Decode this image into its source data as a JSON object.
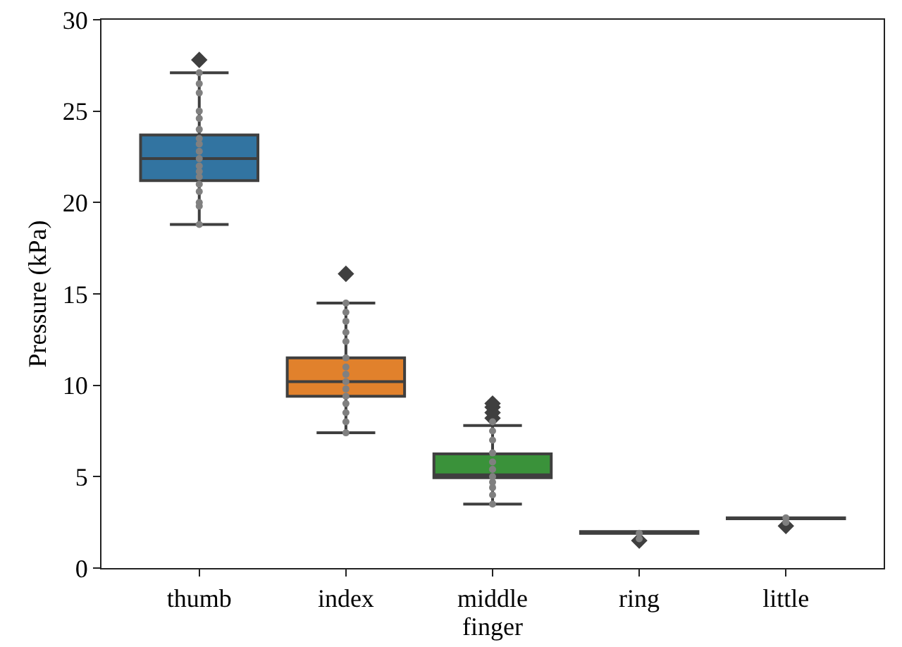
{
  "chart_data": {
    "type": "box",
    "xlabel": "finger",
    "ylabel": "Pressure (kPa)",
    "categories": [
      "thumb",
      "index",
      "middle",
      "ring",
      "little"
    ],
    "ylim": [
      0,
      30
    ],
    "yticks": [
      0,
      5,
      10,
      15,
      20,
      25,
      30
    ],
    "grid": false,
    "boxes": [
      {
        "low": 18.8,
        "q1": 21.2,
        "median": 22.4,
        "q3": 23.7,
        "high": 27.1,
        "outliers": [
          27.8
        ]
      },
      {
        "low": 7.4,
        "q1": 9.4,
        "median": 10.2,
        "q3": 11.5,
        "high": 14.5,
        "outliers": [
          16.1
        ]
      },
      {
        "low": 3.5,
        "q1": 4.95,
        "median": 5.1,
        "q3": 6.25,
        "high": 7.8,
        "outliers": [
          8.2,
          8.5,
          8.8,
          9.0
        ]
      },
      {
        "low": 1.9,
        "q1": 1.9,
        "median": 1.95,
        "q3": 2.0,
        "high": 2.0,
        "outliers": [
          1.5
        ]
      },
      {
        "low": 2.7,
        "q1": 2.7,
        "median": 2.72,
        "q3": 2.75,
        "high": 2.75,
        "outliers": [
          2.3
        ]
      }
    ],
    "colors": [
      "#3274a1",
      "#e1812c",
      "#3a923a",
      "#c03d3e",
      "#9372b2"
    ],
    "series": [
      {
        "type": "scatter",
        "color": "#808080",
        "marker": "circle",
        "x": [
          "thumb",
          "thumb",
          "thumb",
          "thumb",
          "thumb",
          "thumb",
          "thumb",
          "thumb",
          "thumb",
          "thumb",
          "thumb",
          "thumb",
          "thumb",
          "thumb",
          "thumb",
          "thumb",
          "thumb",
          "thumb"
        ],
        "values": [
          27.1,
          26.5,
          26.0,
          25.0,
          24.6,
          24.0,
          23.5,
          23.2,
          22.8,
          22.4,
          22.0,
          21.7,
          21.4,
          21.0,
          20.6,
          20.0,
          19.8,
          18.8
        ]
      },
      {
        "type": "scatter",
        "color": "#808080",
        "marker": "circle",
        "x": [
          "index",
          "index",
          "index",
          "index",
          "index",
          "index",
          "index",
          "index",
          "index",
          "index",
          "index",
          "index",
          "index",
          "index",
          "index"
        ],
        "values": [
          14.5,
          14.0,
          13.5,
          12.9,
          12.4,
          11.5,
          11.0,
          10.6,
          10.2,
          9.8,
          9.4,
          9.0,
          8.5,
          8.0,
          7.4
        ]
      },
      {
        "type": "scatter",
        "color": "#808080",
        "marker": "circle",
        "x": [
          "middle",
          "middle",
          "middle",
          "middle",
          "middle",
          "middle",
          "middle",
          "middle",
          "middle",
          "middle",
          "middle"
        ],
        "values": [
          8.0,
          7.5,
          7.0,
          6.3,
          5.8,
          5.4,
          5.0,
          4.7,
          4.4,
          4.0,
          3.5
        ]
      },
      {
        "type": "scatter",
        "color": "#808080",
        "marker": "circle",
        "x": [
          "ring",
          "ring"
        ],
        "values": [
          1.9,
          1.6
        ]
      },
      {
        "type": "scatter",
        "color": "#808080",
        "marker": "circle",
        "x": [
          "little",
          "little"
        ],
        "values": [
          2.75,
          2.5
        ]
      }
    ]
  }
}
